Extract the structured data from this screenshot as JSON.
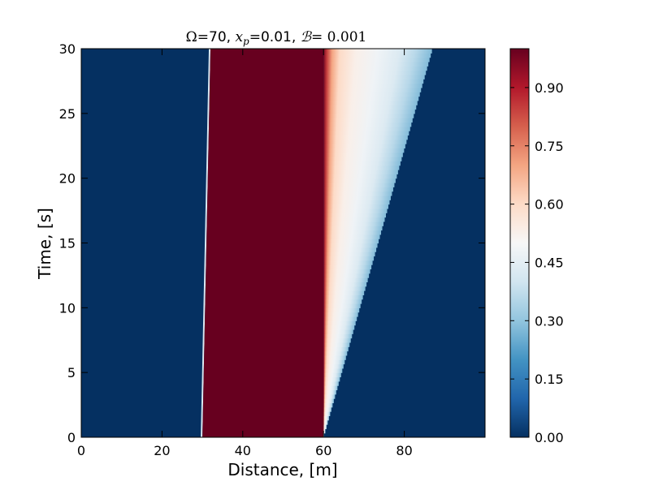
{
  "chart_data": {
    "type": "heatmap",
    "title_parts": {
      "omega_symbol": "Ω",
      "omega_value": "=70, ",
      "xp_symbol": "x",
      "xp_subscript": "p",
      "xp_value": "=0.01, ",
      "b_symbol": "ℬ",
      "b_value": "= 0.001"
    },
    "xlabel": "Distance, [m]",
    "ylabel": "Time, [s]",
    "xlim": [
      0,
      100
    ],
    "ylim": [
      0,
      30
    ],
    "x_ticks": [
      "0",
      "20",
      "40",
      "60",
      "80"
    ],
    "x_tick_values": [
      0,
      20,
      40,
      60,
      80
    ],
    "y_ticks": [
      "0",
      "5",
      "10",
      "15",
      "20",
      "25",
      "30"
    ],
    "y_tick_values": [
      0,
      5,
      10,
      15,
      20,
      25,
      30
    ],
    "colorbar": {
      "colormap": "RdBu_r",
      "range": [
        0.0,
        1.0
      ],
      "ticks": [
        "0.00",
        "0.15",
        "0.30",
        "0.45",
        "0.60",
        "0.75",
        "0.90"
      ],
      "tick_values": [
        0.0,
        0.15,
        0.3,
        0.45,
        0.6,
        0.75,
        0.9
      ]
    },
    "field": {
      "background_value": 0.0,
      "high_region": {
        "value": 1.0,
        "left_edge_x_at_t0": 30,
        "left_edge_x_at_t30": 32,
        "right_edge_x": 60
      },
      "decay_front": {
        "start_x": 60,
        "end_x_at_t0": 60,
        "end_x_at_t30": 87,
        "value_profile": [
          [
            0.0,
            0.98
          ],
          [
            0.03,
            0.85
          ],
          [
            0.08,
            0.7
          ],
          [
            0.15,
            0.6
          ],
          [
            0.3,
            0.53
          ],
          [
            0.5,
            0.48
          ],
          [
            0.7,
            0.43
          ],
          [
            0.85,
            0.36
          ],
          [
            1.0,
            0.28
          ]
        ]
      }
    }
  }
}
